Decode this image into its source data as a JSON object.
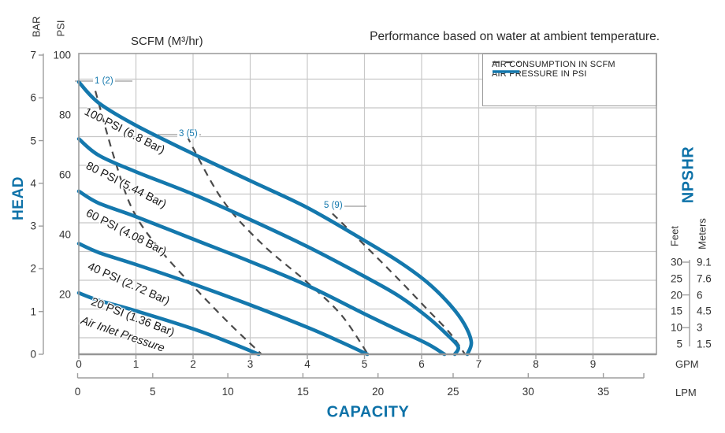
{
  "title": "Performance based on water at ambient temperature.",
  "colors": {
    "curve_blue": "#1478ad",
    "text_blue": "#0e72a8",
    "dashed_gray": "#4a4a4a",
    "grid_gray": "#c8c8c8",
    "border_gray": "#9e9e9e"
  },
  "axes": {
    "scfm_title": "SCFM (M³/hr)",
    "head_label": "HEAD",
    "capacity_label": "CAPACITY",
    "bar": {
      "label": "BAR",
      "ticks": [
        0,
        1,
        2,
        3,
        4,
        5,
        6,
        7
      ]
    },
    "psi": {
      "label": "PSI",
      "ticks": [
        20,
        40,
        60,
        80,
        100
      ]
    },
    "gpm": {
      "label": "GPM",
      "ticks": [
        0,
        1,
        2,
        3,
        4,
        5,
        6,
        7,
        8,
        9
      ]
    },
    "lpm": {
      "label": "LPM",
      "ticks": [
        0,
        5,
        10,
        15,
        20,
        25,
        30,
        35
      ]
    },
    "npshr": {
      "label": "NPSHR",
      "feet_label": "Feet",
      "meters_label": "Meters",
      "feet": [
        "30",
        "25",
        "20",
        "15",
        "10",
        "5"
      ],
      "meters": [
        "9.1",
        "7.6",
        "6",
        "4.5",
        "3",
        "1.5"
      ]
    }
  },
  "legend": [
    {
      "style": "dashed",
      "label": "AIR CONSUMPTION IN SCFM"
    },
    {
      "style": "solid",
      "label": "AIR PRESSURE IN PSI"
    }
  ],
  "chart_data": {
    "type": "line",
    "x_axis": {
      "label": "CAPACITY",
      "units": [
        "GPM",
        "LPM"
      ],
      "gpm_range": [
        0,
        10.1
      ],
      "lpm_range": [
        0,
        38
      ]
    },
    "y_axis": {
      "label": "HEAD",
      "units": [
        "PSI",
        "BAR"
      ],
      "psi_range": [
        0,
        100
      ],
      "bar_range": [
        0,
        7
      ]
    },
    "grid": "on",
    "legend_position": "top-right-inside",
    "pressure_curves": [
      {
        "name": "100 PSI (6.8 Bar)",
        "points_gpm_psi": [
          [
            0,
            91
          ],
          [
            0.35,
            84
          ],
          [
            1,
            76.5
          ],
          [
            2,
            67
          ],
          [
            3,
            58
          ],
          [
            4,
            49
          ],
          [
            5,
            38
          ],
          [
            5.6,
            31
          ],
          [
            6.1,
            24
          ],
          [
            6.5,
            16.5
          ],
          [
            6.75,
            10
          ],
          [
            6.87,
            4
          ],
          [
            6.8,
            0
          ]
        ]
      },
      {
        "name": "80 PSI (5.44 Bar)",
        "points_gpm_psi": [
          [
            0,
            72
          ],
          [
            0.35,
            66.5
          ],
          [
            1,
            61
          ],
          [
            2,
            53.5
          ],
          [
            3,
            45
          ],
          [
            4,
            36
          ],
          [
            5,
            26
          ],
          [
            5.6,
            19.5
          ],
          [
            6.1,
            12.5
          ],
          [
            6.45,
            6.5
          ],
          [
            6.64,
            2.5
          ],
          [
            6.58,
            0
          ]
        ]
      },
      {
        "name": "60 PSI (4.08 Bar)",
        "points_gpm_psi": [
          [
            0,
            54.5
          ],
          [
            0.35,
            50.5
          ],
          [
            1,
            46
          ],
          [
            2,
            38.5
          ],
          [
            3,
            31
          ],
          [
            4,
            23
          ],
          [
            5,
            13.5
          ],
          [
            5.6,
            8
          ],
          [
            6.1,
            3.5
          ],
          [
            6.4,
            0
          ]
        ]
      },
      {
        "name": "40 PSI (2.72 Bar)",
        "points_gpm_psi": [
          [
            0,
            37
          ],
          [
            0.35,
            34
          ],
          [
            1,
            30
          ],
          [
            2,
            23.5
          ],
          [
            3,
            16.5
          ],
          [
            4,
            9
          ],
          [
            4.6,
            4
          ],
          [
            5.05,
            0
          ]
        ]
      },
      {
        "name": "20 PSI (1.36 Bar)",
        "points_gpm_psi": [
          [
            0,
            20.5
          ],
          [
            0.35,
            18
          ],
          [
            1,
            14.5
          ],
          [
            2,
            8.5
          ],
          [
            2.7,
            3.5
          ],
          [
            3.15,
            0
          ]
        ]
      }
    ],
    "air_consumption_curves": [
      {
        "name": "1 (2)",
        "points_gpm_psi": [
          [
            0.29,
            88
          ],
          [
            0.63,
            65
          ],
          [
            0.95,
            48
          ],
          [
            1.42,
            35
          ],
          [
            2.04,
            22
          ],
          [
            2.65,
            10
          ],
          [
            3.2,
            0
          ]
        ]
      },
      {
        "name": "3 (5)",
        "points_gpm_psi": [
          [
            1.89,
            73
          ],
          [
            2.5,
            52
          ],
          [
            3.2,
            37
          ],
          [
            4,
            24
          ],
          [
            4.6,
            13
          ],
          [
            5.06,
            0
          ]
        ]
      },
      {
        "name": "5 (9)",
        "points_gpm_psi": [
          [
            4.44,
            47
          ],
          [
            5,
            36.5
          ],
          [
            5.6,
            25
          ],
          [
            6.1,
            15
          ],
          [
            6.5,
            7
          ],
          [
            6.76,
            0
          ]
        ]
      }
    ],
    "annotations": [
      "Air Inlet Pressure"
    ]
  }
}
